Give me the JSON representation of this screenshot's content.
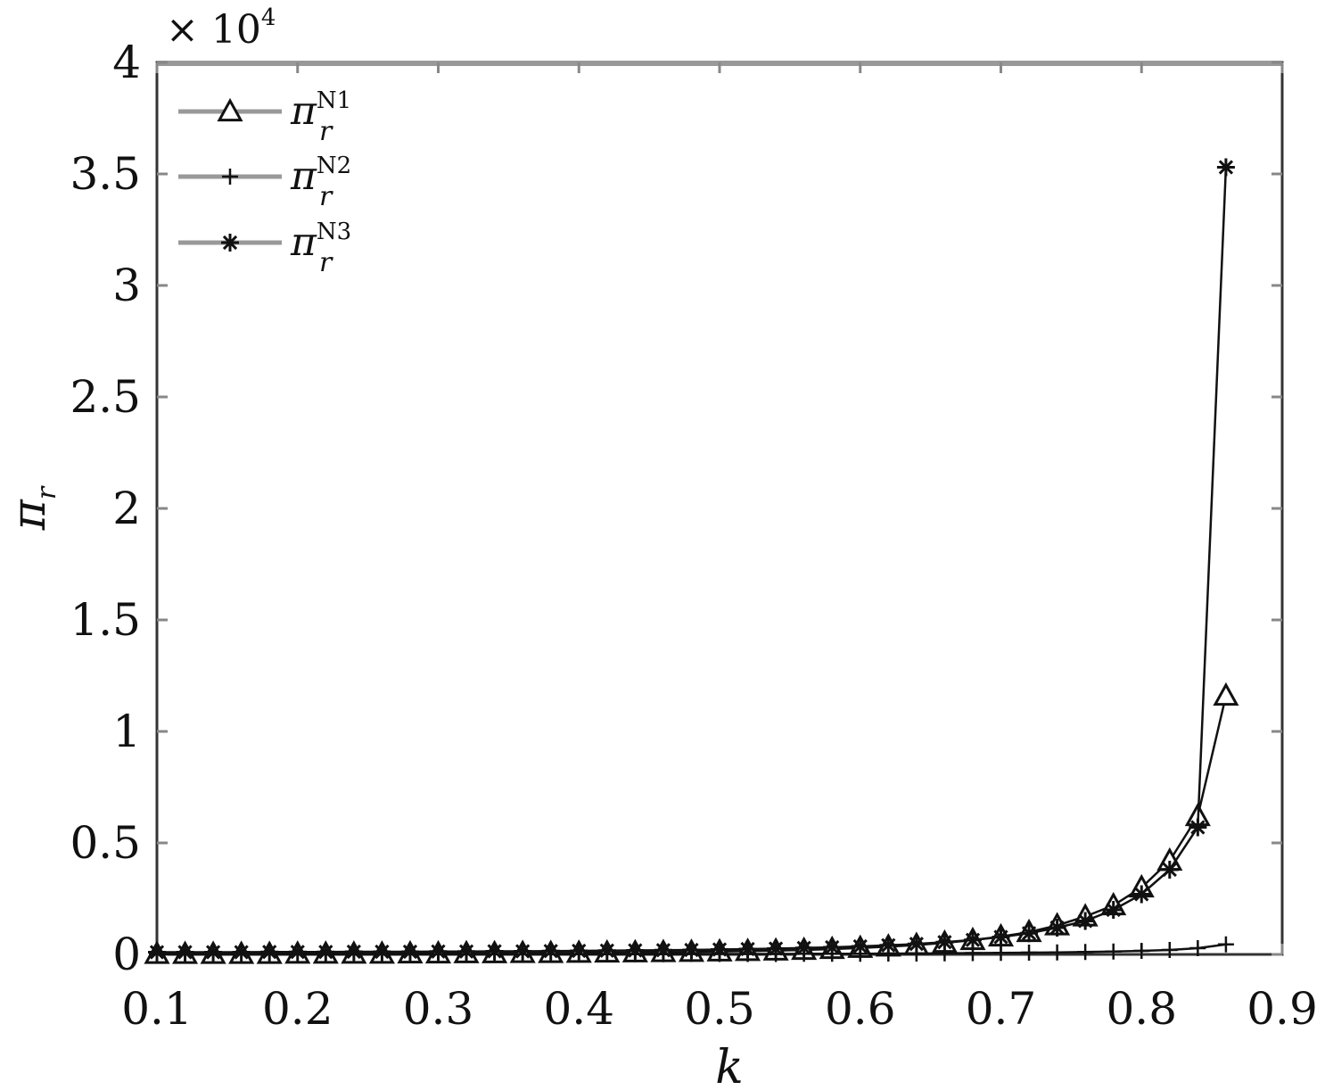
{
  "chart_data": {
    "type": "line",
    "xlabel": "k",
    "ylabel": "π",
    "ylabel_sub": "r",
    "y_multiplier_prefix": "× 10",
    "y_multiplier_exp": "4",
    "xlim": [
      0.1,
      0.9
    ],
    "ylim": [
      0,
      4
    ],
    "xticks": [
      "0.1",
      "0.2",
      "0.3",
      "0.4",
      "0.5",
      "0.6",
      "0.7",
      "0.8",
      "0.9"
    ],
    "yticks": [
      "0",
      "0.5",
      "1",
      "1.5",
      "2",
      "2.5",
      "3",
      "3.5",
      "4"
    ],
    "grid": false,
    "legend_position": "top-left",
    "x": [
      0.1,
      0.12,
      0.14,
      0.16,
      0.18,
      0.2,
      0.22,
      0.24,
      0.26,
      0.28,
      0.3,
      0.32,
      0.34,
      0.36,
      0.38,
      0.4,
      0.42,
      0.44,
      0.46,
      0.48,
      0.5,
      0.52,
      0.54,
      0.56,
      0.58,
      0.6,
      0.62,
      0.64,
      0.66,
      0.68,
      0.7,
      0.72,
      0.74,
      0.76,
      0.78,
      0.8,
      0.82,
      0.84,
      0.86
    ],
    "series": [
      {
        "name": "π",
        "name_sub": "r",
        "name_sup": "N1",
        "marker": "triangle",
        "values": [
          0.002,
          0.002,
          0.002,
          0.002,
          0.002,
          0.003,
          0.003,
          0.003,
          0.003,
          0.004,
          0.004,
          0.005,
          0.005,
          0.006,
          0.006,
          0.007,
          0.008,
          0.009,
          0.01,
          0.011,
          0.013,
          0.015,
          0.017,
          0.02,
          0.024,
          0.029,
          0.035,
          0.042,
          0.052,
          0.064,
          0.08,
          0.1,
          0.13,
          0.17,
          0.22,
          0.3,
          0.42,
          0.62,
          1.16
        ]
      },
      {
        "name": "π",
        "name_sub": "r",
        "name_sup": "N2",
        "marker": "plus",
        "values": [
          0.0003,
          0.0003,
          0.0003,
          0.0004,
          0.0004,
          0.0004,
          0.0005,
          0.0005,
          0.0005,
          0.0006,
          0.0006,
          0.0007,
          0.0008,
          0.0008,
          0.0009,
          0.001,
          0.001,
          0.001,
          0.001,
          0.002,
          0.002,
          0.002,
          0.002,
          0.003,
          0.003,
          0.003,
          0.004,
          0.004,
          0.005,
          0.006,
          0.007,
          0.008,
          0.009,
          0.011,
          0.013,
          0.016,
          0.02,
          0.028,
          0.045
        ]
      },
      {
        "name": "π",
        "name_sub": "r",
        "name_sup": "N3",
        "marker": "asterisk",
        "values": [
          0.01,
          0.01,
          0.01,
          0.01,
          0.011,
          0.011,
          0.011,
          0.012,
          0.012,
          0.012,
          0.013,
          0.013,
          0.014,
          0.014,
          0.015,
          0.016,
          0.017,
          0.018,
          0.019,
          0.02,
          0.022,
          0.024,
          0.026,
          0.029,
          0.032,
          0.036,
          0.041,
          0.047,
          0.055,
          0.065,
          0.078,
          0.095,
          0.12,
          0.15,
          0.2,
          0.27,
          0.38,
          0.57,
          3.53
        ]
      }
    ]
  }
}
